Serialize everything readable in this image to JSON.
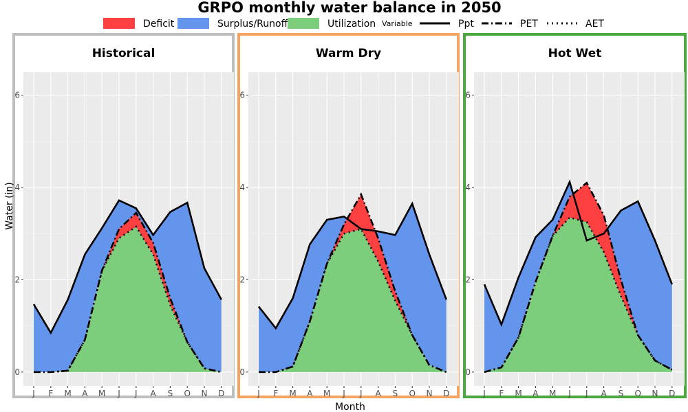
{
  "title": "GRPO monthly water balance in 2050",
  "legend": {
    "fill_items": [
      {
        "label": "Deficit",
        "color": "#ff4040"
      },
      {
        "label": "Surplus/Runoff",
        "color": "#6495ed"
      },
      {
        "label": "Utilization",
        "color": "#7ccd7c"
      }
    ],
    "variable_title": "Variable",
    "line_items": [
      {
        "label": "Ppt",
        "style": "solid"
      },
      {
        "label": "PET",
        "style": "dashdot"
      },
      {
        "label": "AET",
        "style": "dotted"
      }
    ]
  },
  "xlabel": "Month",
  "ylabel": "Water (in)",
  "chart_data": [
    {
      "type": "area",
      "title": "Historical",
      "border_color": "#bebebe",
      "categories": [
        "J",
        "F",
        "M",
        "A",
        "M",
        "J",
        "J",
        "A",
        "S",
        "O",
        "N",
        "D"
      ],
      "ylim": [
        -0.3,
        6.5
      ],
      "yticks": [
        0,
        2,
        4,
        6
      ],
      "series": [
        {
          "name": "Ppt",
          "values": [
            1.47,
            0.85,
            1.57,
            2.55,
            3.12,
            3.72,
            3.55,
            2.97,
            3.47,
            3.67,
            2.25,
            1.57
          ]
        },
        {
          "name": "PET",
          "values": [
            0.0,
            0.0,
            0.03,
            0.7,
            2.2,
            3.1,
            3.45,
            2.8,
            1.6,
            0.65,
            0.08,
            0.0
          ]
        },
        {
          "name": "AET",
          "values": [
            0.0,
            0.0,
            0.03,
            0.7,
            2.2,
            2.9,
            3.15,
            2.55,
            1.45,
            0.65,
            0.08,
            0.0
          ]
        }
      ]
    },
    {
      "type": "area",
      "title": "Warm Dry",
      "border_color": "#f4a460",
      "categories": [
        "J",
        "F",
        "M",
        "A",
        "M",
        "J",
        "J",
        "A",
        "S",
        "O",
        "N",
        "D"
      ],
      "ylim": [
        -0.3,
        6.5
      ],
      "yticks": [
        0,
        2,
        4,
        6
      ],
      "series": [
        {
          "name": "Ppt",
          "values": [
            1.42,
            0.95,
            1.6,
            2.77,
            3.3,
            3.37,
            3.1,
            3.05,
            2.97,
            3.65,
            2.55,
            1.57
          ]
        },
        {
          "name": "PET",
          "values": [
            0.0,
            0.0,
            0.12,
            1.1,
            2.35,
            3.2,
            3.85,
            2.9,
            1.75,
            0.8,
            0.15,
            0.0
          ]
        },
        {
          "name": "AET",
          "values": [
            0.0,
            0.0,
            0.12,
            1.1,
            2.35,
            3.0,
            3.1,
            2.4,
            1.55,
            0.8,
            0.15,
            0.0
          ]
        }
      ]
    },
    {
      "type": "area",
      "title": "Hot Wet",
      "border_color": "#4aa83f",
      "categories": [
        "J",
        "F",
        "M",
        "A",
        "M",
        "J",
        "J",
        "A",
        "S",
        "O",
        "N",
        "D"
      ],
      "ylim": [
        -0.3,
        6.5
      ],
      "yticks": [
        0,
        2,
        4,
        6
      ],
      "series": [
        {
          "name": "Ppt",
          "values": [
            1.9,
            1.03,
            2.05,
            2.92,
            3.3,
            4.12,
            2.85,
            3.0,
            3.5,
            3.7,
            2.85,
            1.9
          ]
        },
        {
          "name": "PET",
          "values": [
            0.0,
            0.1,
            0.75,
            1.95,
            2.95,
            3.8,
            4.1,
            3.4,
            2.0,
            0.8,
            0.25,
            0.05
          ]
        },
        {
          "name": "AET",
          "values": [
            0.0,
            0.1,
            0.75,
            1.95,
            2.95,
            3.35,
            3.25,
            2.6,
            1.65,
            0.8,
            0.25,
            0.05
          ]
        }
      ]
    }
  ]
}
